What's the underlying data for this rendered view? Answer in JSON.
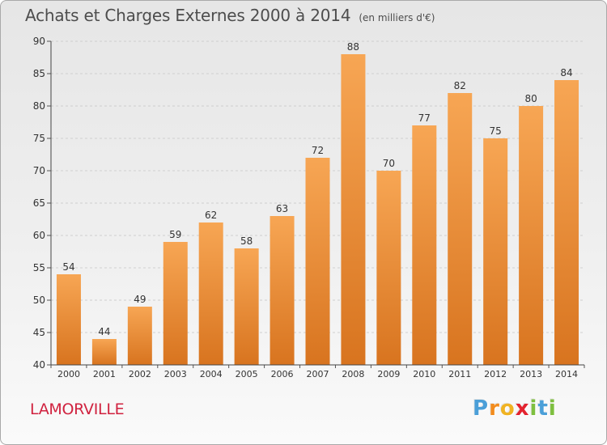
{
  "title": "Achats et Charges Externes 2000 à 2014",
  "subtitle": "(en milliers d'€)",
  "commune": "LAMORVILLE",
  "logo": {
    "letters": [
      "P",
      "r",
      "o",
      "x",
      "i",
      "t",
      "i"
    ],
    "colors": [
      "#4b9fd8",
      "#f28c1e",
      "#f0b323",
      "#e3232f",
      "#7ebf3f",
      "#4b9fd8",
      "#7ebf3f"
    ]
  },
  "colors": {
    "bar_top": "#f7a654",
    "bar_bottom": "#d8741f",
    "axis_text": "#333333",
    "grid": "#cfcfcf",
    "title_text": "#4d4d4d",
    "commune_text": "#d0223f"
  },
  "chart_data": {
    "type": "bar",
    "title": "Achats et Charges Externes 2000 à 2014",
    "subtitle": "(en milliers d'€)",
    "categories": [
      "2000",
      "2001",
      "2002",
      "2003",
      "2004",
      "2005",
      "2006",
      "2007",
      "2008",
      "2009",
      "2010",
      "2011",
      "2012",
      "2013",
      "2014"
    ],
    "values": [
      54,
      44,
      49,
      59,
      62,
      58,
      63,
      72,
      88,
      70,
      77,
      82,
      75,
      80,
      84
    ],
    "ylim": [
      40,
      90
    ],
    "yticks": [
      40,
      45,
      50,
      55,
      60,
      65,
      70,
      75,
      80,
      85,
      90
    ],
    "grid": true,
    "data_labels": true
  }
}
